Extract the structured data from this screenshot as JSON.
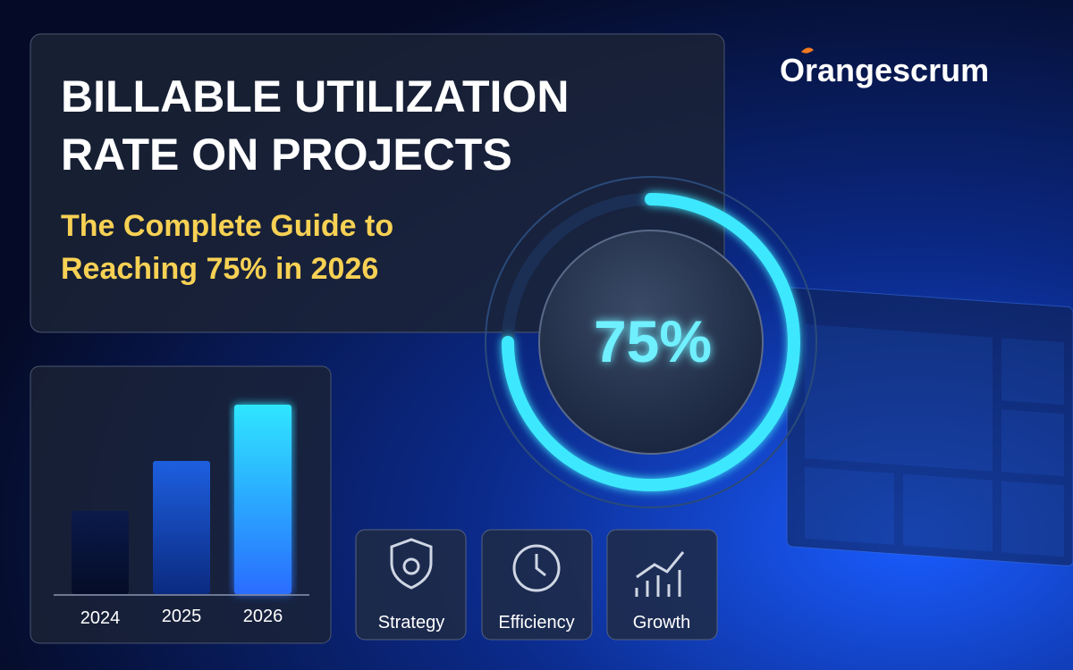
{
  "brand": "Orangescrum",
  "header": {
    "title_line1": "BILLABLE UTILIZATION",
    "title_line2": "RATE ON PROJECTS",
    "subtitle_line1": "The Complete Guide to",
    "subtitle_line2": "Reaching 75% in 2026"
  },
  "gauge": {
    "value": 75,
    "label": "75%"
  },
  "bars": {
    "categories": [
      "2024",
      "2025",
      "2026"
    ]
  },
  "features": [
    "Strategy",
    "Efficiency",
    "Growth"
  ]
}
